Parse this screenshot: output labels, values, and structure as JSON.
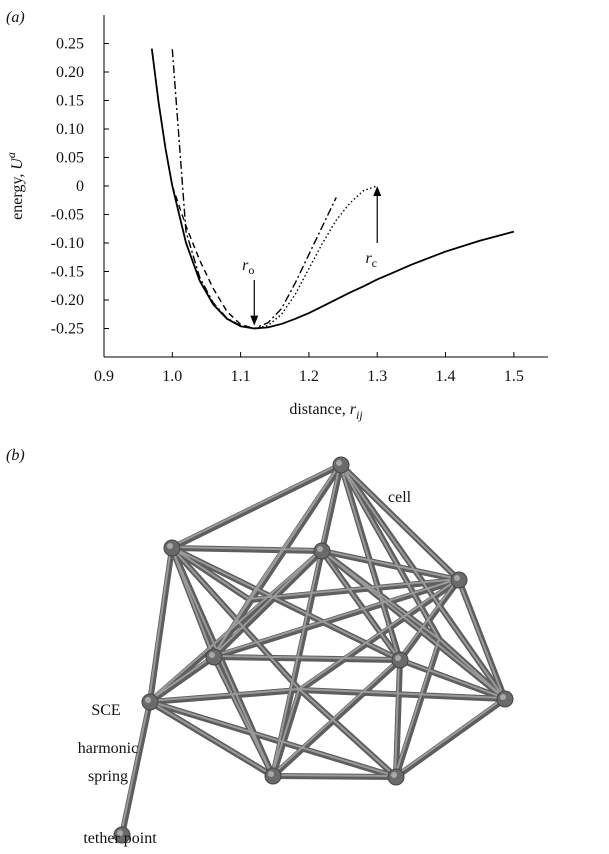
{
  "chart_data": {
    "type": "line",
    "panel_label": "(a)",
    "xlabel": {
      "text": "distance, ",
      "var": "r",
      "sub": "ij"
    },
    "ylabel": {
      "text": "energy, ",
      "var": "U",
      "sup": "a"
    },
    "x": [
      0.97,
      0.98,
      0.99,
      1.0,
      1.02,
      1.04,
      1.06,
      1.08,
      1.1,
      1.12,
      1.14,
      1.16,
      1.18,
      1.2,
      1.22,
      1.24,
      1.26,
      1.28,
      1.3,
      1.35,
      1.4,
      1.45,
      1.5
    ],
    "series": [
      {
        "color": "#000000",
        "style": "solid",
        "values": [
          0.241,
          0.146,
          0.066,
          0,
          -0.0995,
          -0.166,
          -0.208,
          -0.233,
          -0.246,
          -0.25,
          -0.248,
          -0.242,
          -0.233,
          -0.223,
          -0.211,
          -0.199,
          -0.187,
          -0.176,
          -0.164,
          -0.138,
          -0.115,
          -0.096,
          -0.08
        ]
      },
      {
        "color": "#000000",
        "style": "dashed",
        "values": [
          null,
          null,
          null,
          0,
          -0.07,
          -0.13,
          -0.18,
          -0.22,
          -0.243,
          -0.25,
          null,
          null,
          null,
          null,
          null,
          null,
          null,
          null,
          null,
          null,
          null,
          null,
          null
        ]
      },
      {
        "color": "#000000",
        "style": "dashdot",
        "values": [
          null,
          null,
          null,
          0.24,
          -0.08,
          -0.16,
          -0.205,
          -0.232,
          -0.245,
          -0.25,
          -0.24,
          -0.215,
          -0.17,
          -0.12,
          -0.07,
          -0.02,
          null,
          null,
          null,
          null,
          null,
          null,
          null
        ]
      },
      {
        "color": "#000000",
        "style": "dotted",
        "values": [
          null,
          null,
          null,
          null,
          null,
          null,
          null,
          null,
          null,
          -0.25,
          -0.245,
          -0.225,
          -0.19,
          -0.145,
          -0.1,
          -0.06,
          -0.03,
          -0.008,
          0,
          null,
          null,
          null,
          null
        ]
      }
    ],
    "annotations": [
      {
        "text": "r",
        "sub": "o",
        "x": 1.12,
        "y_from": -0.165,
        "y_to": -0.245
      },
      {
        "text": "r",
        "sub": "c",
        "x": 1.3,
        "y_from": -0.1,
        "y_to": 0
      }
    ],
    "xlim": [
      0.9,
      1.55
    ],
    "xticks": [
      0.9,
      {
        "value": 1.0,
        "label": "1.0"
      },
      1.1,
      1.2,
      1.3,
      1.4,
      1.5
    ],
    "ylim": [
      -0.3,
      0.3
    ],
    "yticks": [
      0.25,
      {
        "value": 0.2,
        "label": "0.20"
      },
      0.15,
      {
        "value": 0.1,
        "label": "0.10"
      },
      0.05,
      0,
      -0.05,
      {
        "value": -0.1,
        "label": "-0.10"
      },
      -0.15,
      {
        "value": -0.2,
        "label": "-0.20"
      },
      -0.25
    ],
    "grid": false
  },
  "panel_b": {
    "label": "(b)",
    "cell": "cell",
    "sce": "SCE",
    "spring": [
      "harmonic",
      "spring"
    ],
    "tether": "tether point"
  }
}
